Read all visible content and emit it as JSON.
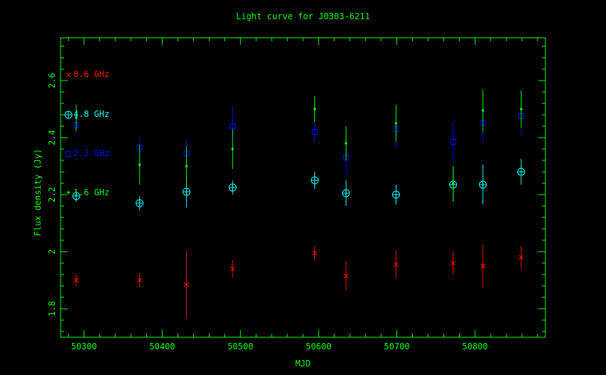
{
  "chart_data": {
    "type": "scatter",
    "title": "Light curve for J0303-6211",
    "xlabel": "MJD",
    "ylabel": "Flux density (Jy)",
    "xlim": [
      50270,
      50890
    ],
    "ylim": [
      1.7,
      2.75
    ],
    "x_ticks": [
      50300,
      50400,
      50500,
      50600,
      50700,
      50800
    ],
    "y_ticks": [
      1.8,
      2,
      2.2,
      2.4,
      2.6
    ],
    "grid": false,
    "axis_color": "#00ff00",
    "background": "#000000",
    "series": [
      {
        "name": "8.6 GHz",
        "color": "#ff0000",
        "marker": "cross",
        "points": [
          {
            "x": 50290,
            "y": 1.9,
            "err": 0.02
          },
          {
            "x": 50371,
            "y": 1.9,
            "err": 0.025
          },
          {
            "x": 50431,
            "y": 1.885,
            "err": 0.12
          },
          {
            "x": 50490,
            "y": 1.94,
            "err": 0.03
          },
          {
            "x": 50595,
            "y": 1.995,
            "err": 0.025
          },
          {
            "x": 50635,
            "y": 1.915,
            "err": 0.05
          },
          {
            "x": 50699,
            "y": 1.955,
            "err": 0.05
          },
          {
            "x": 50772,
            "y": 1.96,
            "err": 0.04
          },
          {
            "x": 50810,
            "y": 1.95,
            "err": 0.075
          },
          {
            "x": 50859,
            "y": 1.98,
            "err": 0.04
          }
        ]
      },
      {
        "name": "4.8 GHz",
        "color": "#00ffff",
        "marker": "circle-plus",
        "points": [
          {
            "x": 50290,
            "y": 2.195,
            "err": 0.02
          },
          {
            "x": 50371,
            "y": 2.17,
            "err": 0.025
          },
          {
            "x": 50431,
            "y": 2.21,
            "err": 0.055
          },
          {
            "x": 50490,
            "y": 2.225,
            "err": 0.025
          },
          {
            "x": 50595,
            "y": 2.25,
            "err": 0.03
          },
          {
            "x": 50635,
            "y": 2.205,
            "err": 0.045
          },
          {
            "x": 50699,
            "y": 2.2,
            "err": 0.035
          },
          {
            "x": 50772,
            "y": 2.235,
            "err": 0.06
          },
          {
            "x": 50810,
            "y": 2.235,
            "err": 0.07
          },
          {
            "x": 50859,
            "y": 2.28,
            "err": 0.045
          }
        ]
      },
      {
        "name": "2.3 GHz",
        "color": "#0000ff",
        "marker": "square",
        "points": [
          {
            "x": 50290,
            "y": 2.445,
            "err": 0.03
          },
          {
            "x": 50371,
            "y": 2.365,
            "err": 0.035
          },
          {
            "x": 50431,
            "y": 2.345,
            "err": 0.045
          },
          {
            "x": 50490,
            "y": 2.44,
            "err": 0.07
          },
          {
            "x": 50595,
            "y": 2.42,
            "err": 0.035
          },
          {
            "x": 50635,
            "y": 2.33,
            "err": 0.065
          },
          {
            "x": 50699,
            "y": 2.43,
            "err": 0.065
          },
          {
            "x": 50772,
            "y": 2.385,
            "err": 0.07
          },
          {
            "x": 50810,
            "y": 2.45,
            "err": 0.07
          },
          {
            "x": 50859,
            "y": 2.475,
            "err": 0.065
          }
        ]
      },
      {
        "name": "1.6 GHz",
        "color": "#00ff00",
        "marker": "dot",
        "points": [
          {
            "x": 50290,
            "y": 2.47,
            "err": 0.045
          },
          {
            "x": 50371,
            "y": 2.305,
            "err": 0.07
          },
          {
            "x": 50431,
            "y": 2.3,
            "err": 0.07
          },
          {
            "x": 50490,
            "y": 2.36,
            "err": 0.07
          },
          {
            "x": 50595,
            "y": 2.5,
            "err": 0.045
          },
          {
            "x": 50635,
            "y": 2.38,
            "err": 0.06
          },
          {
            "x": 50699,
            "y": 2.45,
            "err": 0.065
          },
          {
            "x": 50772,
            "y": 2.24,
            "err": 0.06
          },
          {
            "x": 50810,
            "y": 2.495,
            "err": 0.075
          },
          {
            "x": 50859,
            "y": 2.5,
            "err": 0.065
          }
        ]
      }
    ]
  }
}
